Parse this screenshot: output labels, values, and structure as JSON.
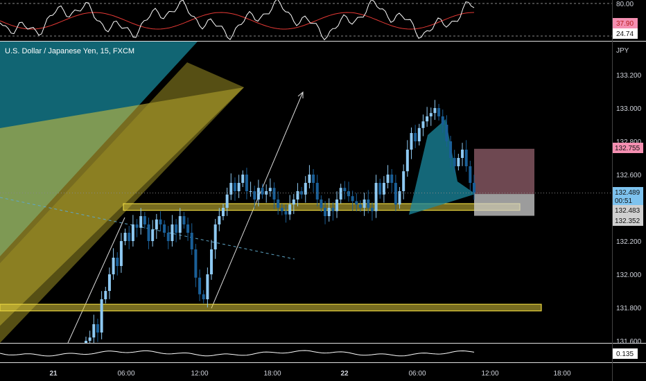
{
  "chart_title": "U.S. Dollar / Japanese Yen, 15, FXCM",
  "currency_label": "JPY",
  "colors": {
    "background": "#000000",
    "up_candle": "#8ec9f2",
    "down_candle": "#1a5f97",
    "rsi_line": "#ffffff",
    "rsi_ma": "#e53935",
    "zone_fill": "#d9c43a",
    "teal_fill": "#1b8aa0",
    "stop_zone": "#f3a0b4",
    "target_zone": "#d0d0d0",
    "axis_text": "#d1d4dc"
  },
  "rsi_panel": {
    "levels": [
      "80.00",
      "24.74"
    ],
    "badge_value": "37.90"
  },
  "osc_panel": {
    "badge_value": "0.135"
  },
  "price_axis": {
    "ticks": [
      "133.200",
      "133.000",
      "132.800",
      "132.600",
      "132.400",
      "132.200",
      "132.000",
      "131.800",
      "131.600"
    ]
  },
  "price_badges": {
    "stop": "132.755",
    "current": "132.489",
    "countdown": "00:51",
    "entry": "132.483",
    "target": "132.352"
  },
  "time_axis": {
    "labels": [
      "21",
      "06:00",
      "12:00",
      "18:00",
      "22",
      "06:00",
      "12:00",
      "18:00"
    ]
  },
  "chart_data": {
    "type": "candlestick",
    "symbol": "U.S. Dollar / Japanese Yen",
    "interval": "15",
    "source": "FXCM",
    "price_range": [
      131.55,
      133.35
    ],
    "support_zones": [
      [
        132.385,
        132.425
      ],
      [
        131.78,
        131.82
      ]
    ],
    "position": {
      "stop": 132.755,
      "entry": 132.483,
      "target": 132.352
    },
    "series": [
      {
        "name": "price_15m",
        "close": [
          131.6,
          131.62,
          131.7,
          131.65,
          131.85,
          131.9,
          132.0,
          132.1,
          132.05,
          132.2,
          132.25,
          132.2,
          132.3,
          132.28,
          132.35,
          132.3,
          132.2,
          132.27,
          132.33,
          132.3,
          132.25,
          132.2,
          132.3,
          132.25,
          132.35,
          132.3,
          132.25,
          132.15,
          131.98,
          131.88,
          131.85,
          132.0,
          132.15,
          132.3,
          132.35,
          132.4,
          132.48,
          132.55,
          132.5,
          132.55,
          132.6,
          132.5,
          132.5,
          132.45,
          132.52,
          132.48,
          132.5,
          132.52,
          132.45,
          132.4,
          132.38,
          132.36,
          132.42,
          132.45,
          132.5,
          132.48,
          132.55,
          132.6,
          132.55,
          132.45,
          132.4,
          132.35,
          132.4,
          132.38,
          132.45,
          132.52,
          132.5,
          132.47,
          132.44,
          132.42,
          132.4,
          132.45,
          132.4,
          132.38,
          132.55,
          132.48,
          132.55,
          132.6,
          132.55,
          132.42,
          132.5,
          132.62,
          132.75,
          132.85,
          132.8,
          132.88,
          132.92,
          132.95,
          132.97,
          133.0,
          132.95,
          132.9,
          132.8,
          132.7,
          132.65,
          132.7,
          132.75,
          132.65,
          132.55,
          132.49
        ]
      }
    ]
  }
}
